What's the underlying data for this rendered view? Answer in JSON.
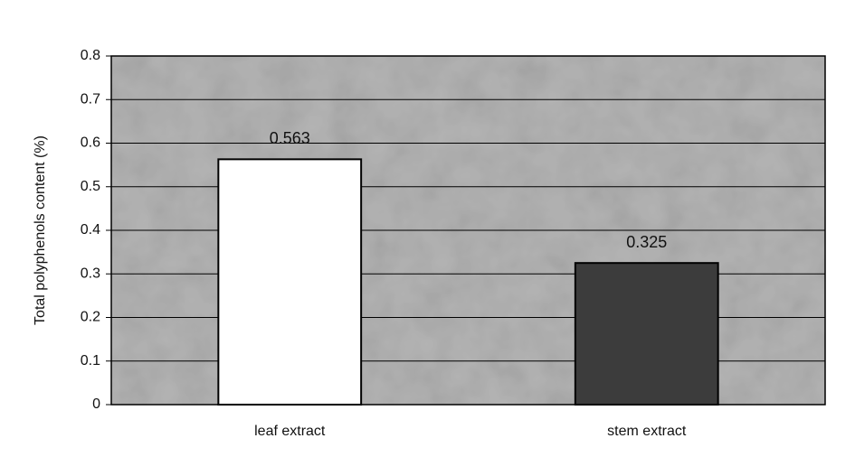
{
  "chart_data": {
    "type": "bar",
    "y_label": "Total polyphenols content (%)",
    "categories": [
      "leaf extract",
      "stem extract"
    ],
    "values": [
      0.563,
      0.325
    ],
    "colors": [
      "#ffffff",
      "#3c3c3c"
    ],
    "plot_color": "#b4b4b4",
    "ylim": [
      0,
      0.8
    ],
    "yticks": [
      0,
      0.1,
      0.2,
      0.3,
      0.4,
      0.5,
      0.6,
      0.7,
      0.8
    ],
    "grid": true,
    "data_labels": true
  }
}
